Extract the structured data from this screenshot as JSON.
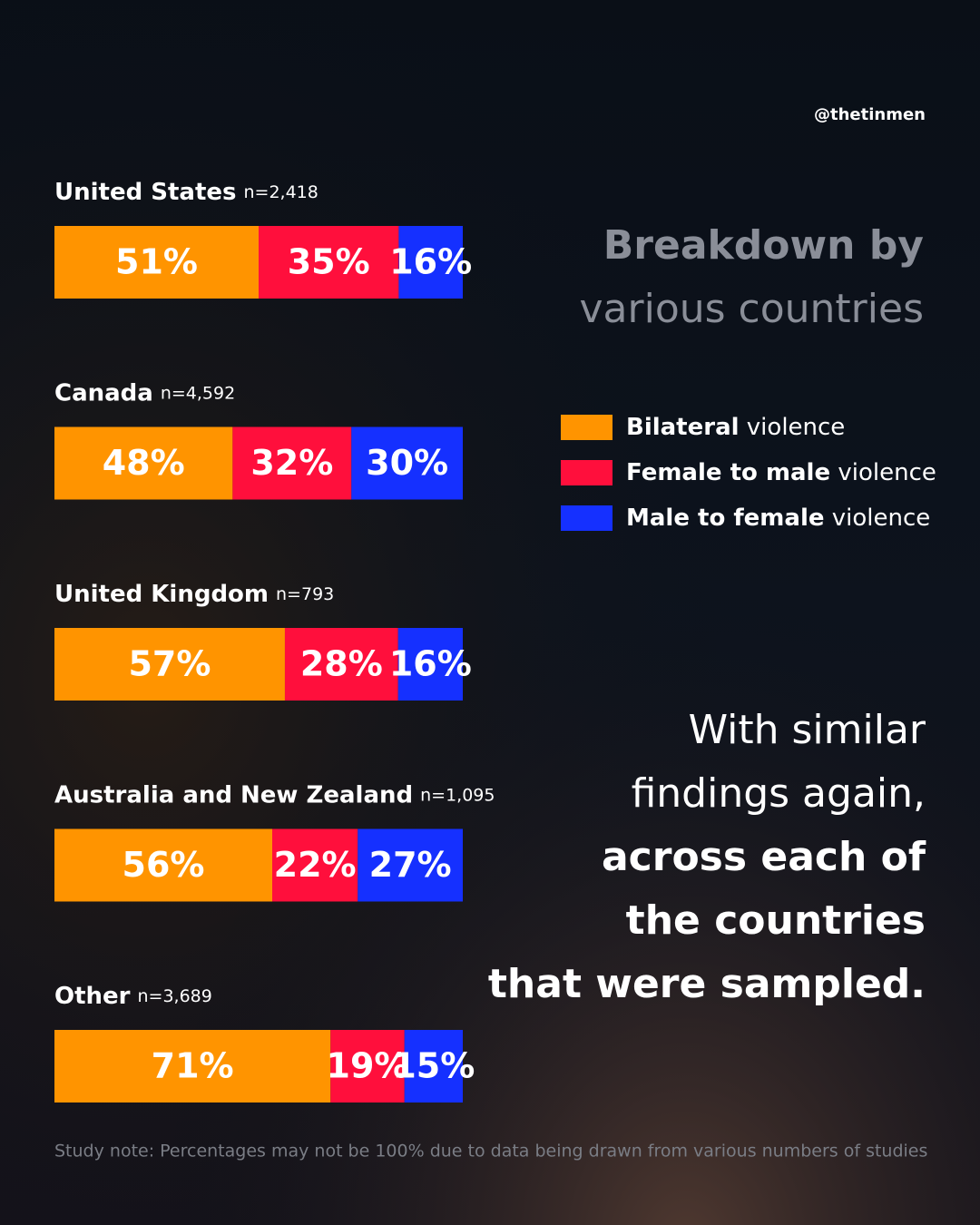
{
  "chart_data": {
    "type": "stacked-bar",
    "handle": "@thetinmen",
    "title_lines": [
      "Breakdown by",
      "various countries"
    ],
    "annotation_lines": [
      "With similar",
      "findings again,",
      "across each of",
      "the countries",
      "that were sampled."
    ],
    "note": "Study note: Percentages may not be 100% due to data being drawn from various numbers of studies",
    "categories": [
      "United States",
      "Canada",
      "United Kingdom",
      "Australia and New Zealand",
      "Other"
    ],
    "sample_labels": [
      "n=2,418",
      "n=4,592",
      "n=793",
      "n=1,095",
      "n=3,689"
    ],
    "series": [
      {
        "name": "Bilateral violence",
        "color": "#ff9400",
        "values": [
          51,
          48,
          57,
          56,
          71
        ],
        "value_labels": [
          "51%",
          "48%",
          "57%",
          "56%",
          "71%"
        ]
      },
      {
        "name": "Female to male violence",
        "color": "#ff0f3c",
        "values": [
          35,
          32,
          28,
          22,
          19
        ],
        "value_labels": [
          "35%",
          "32%",
          "28%",
          "22%",
          "19%"
        ]
      },
      {
        "name": "Male to female violence",
        "color": "#1530ff",
        "values": [
          16,
          30,
          16,
          27,
          15
        ],
        "value_labels": [
          "16%",
          "30%",
          "16%",
          "27%",
          "15%"
        ]
      }
    ]
  }
}
